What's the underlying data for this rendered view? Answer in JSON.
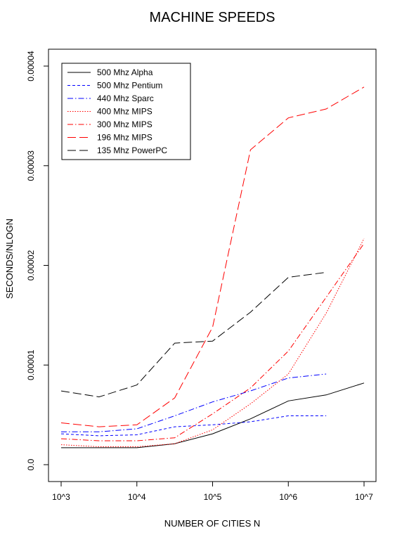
{
  "chart_data": {
    "type": "line",
    "title": "MACHINE SPEEDS",
    "xlabel": "NUMBER OF CITIES N",
    "ylabel": "SECONDS/NLOGN",
    "x_scale": "log10",
    "xlim": [
      1000,
      10000000
    ],
    "ylim": [
      0,
      4e-05
    ],
    "x_ticks": [
      {
        "value": 1000,
        "label": "10^3"
      },
      {
        "value": 10000,
        "label": "10^4"
      },
      {
        "value": 100000,
        "label": "10^5"
      },
      {
        "value": 1000000,
        "label": "10^6"
      },
      {
        "value": 10000000,
        "label": "10^7"
      }
    ],
    "y_ticks": [
      {
        "value": 0,
        "label": "0.0"
      },
      {
        "value": 1e-05,
        "label": "0.00001"
      },
      {
        "value": 2e-05,
        "label": "0.00002"
      },
      {
        "value": 3e-05,
        "label": "0.00003"
      },
      {
        "value": 4e-05,
        "label": "0.00004"
      }
    ],
    "grid": false,
    "legend_position": "top-left",
    "series": [
      {
        "name": "500 Mhz Alpha",
        "color": "#000000",
        "dash": "solid",
        "x": [
          1000,
          3162,
          10000,
          31623,
          100000,
          316228,
          1000000,
          3162278,
          10000000
        ],
        "values": [
          1.7e-06,
          1.7e-06,
          1.7e-06,
          2.1e-06,
          3.1e-06,
          4.6e-06,
          6.4e-06,
          7e-06,
          8.2e-06
        ]
      },
      {
        "name": "500 Mhz Pentium",
        "color": "#0000ff",
        "dash": "dashed",
        "x": [
          1000,
          3162,
          10000,
          31623,
          100000,
          316228,
          1000000,
          3162278
        ],
        "values": [
          3.1e-06,
          2.9e-06,
          3e-06,
          3.8e-06,
          4e-06,
          4.3e-06,
          4.9e-06,
          4.9e-06
        ]
      },
      {
        "name": "440 Mhz Sparc",
        "color": "#0000ff",
        "dash": "dashdot",
        "x": [
          1000,
          3162,
          10000,
          31623,
          100000,
          316228,
          1000000,
          3162278
        ],
        "values": [
          3.3e-06,
          3.3e-06,
          3.6e-06,
          4.9e-06,
          6.3e-06,
          7.4e-06,
          8.7e-06,
          9.1e-06
        ]
      },
      {
        "name": "400 Mhz MIPS",
        "color": "#ff0000",
        "dash": "dotted",
        "x": [
          1000,
          3162,
          10000,
          31623,
          100000,
          316228,
          1000000,
          3162278,
          10000000
        ],
        "values": [
          2e-06,
          1.8e-06,
          1.8e-06,
          2.1e-06,
          3.5e-06,
          6.1e-06,
          9.1e-06,
          1.52e-05,
          2.27e-05
        ]
      },
      {
        "name": "300 Mhz MIPS",
        "color": "#ff0000",
        "dash": "dashdot",
        "x": [
          1000,
          3162,
          10000,
          31623,
          100000,
          316228,
          1000000,
          3162278,
          10000000
        ],
        "values": [
          2.6e-06,
          2.4e-06,
          2.4e-06,
          2.7e-06,
          5.1e-06,
          7.7e-06,
          1.14e-05,
          1.68e-05,
          2.22e-05
        ]
      },
      {
        "name": "196 Mhz MIPS",
        "color": "#ff0000",
        "dash": "longdash",
        "x": [
          1000,
          3162,
          10000,
          31623,
          100000,
          316228,
          1000000,
          3162278,
          10000000
        ],
        "values": [
          4.2e-06,
          3.8e-06,
          4e-06,
          6.7e-06,
          1.38e-05,
          3.16e-05,
          3.48e-05,
          3.57e-05,
          3.79e-05
        ]
      },
      {
        "name": "135 Mhz PowerPC",
        "color": "#000000",
        "dash": "longdash",
        "x": [
          1000,
          3162,
          10000,
          31623,
          100000,
          316228,
          1000000,
          3162278
        ],
        "values": [
          7.4e-06,
          6.8e-06,
          8e-06,
          1.22e-05,
          1.24e-05,
          1.53e-05,
          1.88e-05,
          1.93e-05
        ]
      }
    ]
  }
}
